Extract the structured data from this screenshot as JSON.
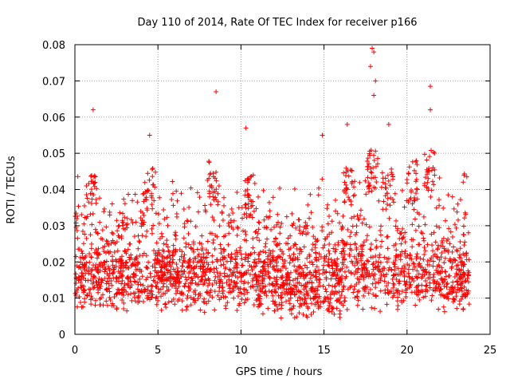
{
  "chart_data": {
    "type": "scatter",
    "title": "Day 110 of 2014, Rate Of TEC Index for receiver p166",
    "xlabel": "GPS time / hours",
    "ylabel": "ROTI / TECUs",
    "xlim": [
      0,
      25
    ],
    "ylim": [
      0,
      0.08
    ],
    "xticks": [
      0,
      5,
      10,
      15,
      20,
      25
    ],
    "xtick_labels": [
      "0",
      "5",
      "10",
      "15",
      "20",
      "25"
    ],
    "yticks": [
      0,
      0.01,
      0.02,
      0.03,
      0.04,
      0.05,
      0.06,
      0.07,
      0.08
    ],
    "ytick_labels": [
      "0",
      "0.01",
      "0.02",
      "0.03",
      "0.04",
      "0.05",
      "0.06",
      "0.07",
      "0.08"
    ],
    "grid": true,
    "marker": "+",
    "color": "#ff0000",
    "series": [
      {
        "name": "ROTI",
        "x_range": [
          0.0,
          23.75
        ],
        "typical_range": [
          0.006,
          0.03
        ],
        "notable_points": [
          {
            "x": 1.1,
            "y": 0.062
          },
          {
            "x": 4.5,
            "y": 0.055
          },
          {
            "x": 8.5,
            "y": 0.067
          },
          {
            "x": 10.3,
            "y": 0.057
          },
          {
            "x": 14.9,
            "y": 0.055
          },
          {
            "x": 16.4,
            "y": 0.058
          },
          {
            "x": 17.9,
            "y": 0.079
          },
          {
            "x": 18.0,
            "y": 0.078
          },
          {
            "x": 17.8,
            "y": 0.074
          },
          {
            "x": 18.1,
            "y": 0.07
          },
          {
            "x": 18.0,
            "y": 0.066
          },
          {
            "x": 18.9,
            "y": 0.058
          },
          {
            "x": 21.4,
            "y": 0.0685
          },
          {
            "x": 21.4,
            "y": 0.062
          },
          {
            "x": 23.6,
            "y": 0.0435
          }
        ]
      }
    ]
  }
}
